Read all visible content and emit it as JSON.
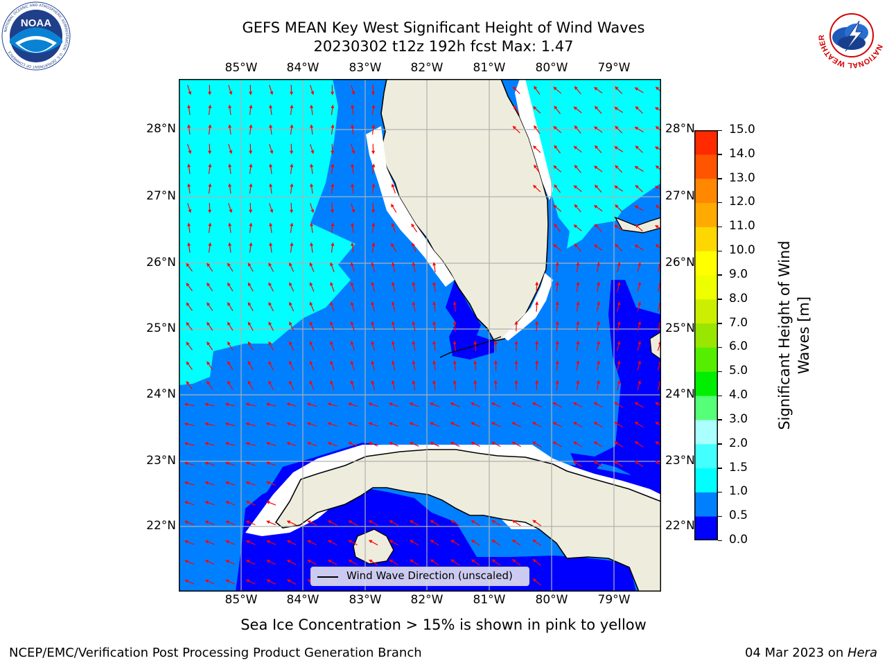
{
  "title": {
    "line1": "GEFS MEAN Key West Significant Height of Wind Waves",
    "line2": "20230302 t12z 192h fcst   Max: 1.47"
  },
  "map": {
    "lon_ticks": [
      "85°W",
      "84°W",
      "83°W",
      "82°W",
      "81°W",
      "80°W",
      "79°W"
    ],
    "lat_ticks": [
      "28°N",
      "27°N",
      "26°N",
      "25°N",
      "24°N",
      "23°N",
      "22°N"
    ],
    "legend_label": "Wind Wave Direction (unscaled)",
    "colors": {
      "land": "#eeeddd",
      "band_0_0p5": "#0000ff",
      "band_0p5_1": "#0080ff",
      "band_1_1p5": "#00ffff",
      "arrow": "#ff0000",
      "grid": "#b0b0b0"
    }
  },
  "colorbar": {
    "label": "Significant Height of Wind Waves [m]",
    "label_line1": "Significant Height of Wind",
    "label_line2": "Waves [m]",
    "ticks": [
      "15.0",
      "14.0",
      "13.0",
      "12.0",
      "11.0",
      "10.0",
      "9.0",
      "8.0",
      "7.0",
      "6.0",
      "5.0",
      "4.0",
      "3.0",
      "2.0",
      "1.5",
      "1.0",
      "0.5",
      "0.0"
    ],
    "levels": [
      0.0,
      0.5,
      1.0,
      1.5,
      2.0,
      3.0,
      4.0,
      5.0,
      6.0,
      7.0,
      8.0,
      9.0,
      10.0,
      11.0,
      12.0,
      13.0,
      14.0,
      15.0
    ],
    "colors": [
      "#0000ff",
      "#0080ff",
      "#00ffff",
      "#44ffff",
      "#aaffff",
      "#55ff77",
      "#00ee00",
      "#55ee00",
      "#99e600",
      "#ccee00",
      "#eeff00",
      "#ffff00",
      "#ffd700",
      "#ffaa00",
      "#ff8800",
      "#ff5500",
      "#ff2a00",
      "#ff0000"
    ]
  },
  "subtitle": "Sea Ice Concentration > 15% is shown in pink to yellow",
  "footer": {
    "left": "NCEP/EMC/Verification Post Processing Product Generation Branch",
    "right_date": "04 Mar 2023 on ",
    "right_host": "Hera"
  },
  "logos": {
    "left": {
      "name": "NOAA",
      "ring_text": "NATIONAL OCEANIC AND ATMOSPHERIC ADMINISTRATION · U.S. DEPARTMENT OF COMMERCE"
    },
    "right": {
      "ring_text": "NATIONAL WEATHER SERVICE"
    }
  }
}
